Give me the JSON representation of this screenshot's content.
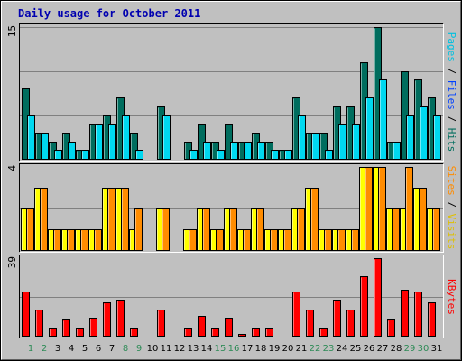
{
  "title": "Daily usage for October 2011",
  "colors": {
    "background": "#c0c0c0",
    "border": "#000000",
    "gridline": "#808080",
    "title": "#0000b0",
    "weekday": "#000000",
    "weekend": "#2e8b57",
    "pages": "#00d8f0",
    "files": "#0040ff",
    "hits": "#006d5e",
    "sites": "#ff8c00",
    "visits": "#ffff00",
    "kbytes": "#ff0000"
  },
  "legend": {
    "top": [
      {
        "text": "Pages",
        "color": "#00c0e0"
      },
      {
        "text": " / ",
        "color": "#000000"
      },
      {
        "text": "Files",
        "color": "#0040ff"
      },
      {
        "text": " / ",
        "color": "#000000"
      },
      {
        "text": "Hits",
        "color": "#006d5e"
      }
    ],
    "middle": [
      {
        "text": "Sites",
        "color": "#ff8c00"
      },
      {
        "text": " / ",
        "color": "#000000"
      },
      {
        "text": "Visits",
        "color": "#e0c000"
      }
    ],
    "bottom": [
      {
        "text": "KBytes",
        "color": "#ff0000"
      }
    ]
  },
  "chart_data": {
    "type": "bar",
    "title": "Daily usage for October 2011",
    "categories": [
      "1",
      "2",
      "3",
      "4",
      "5",
      "6",
      "7",
      "8",
      "9",
      "10",
      "11",
      "12",
      "13",
      "14",
      "15",
      "16",
      "17",
      "18",
      "19",
      "20",
      "21",
      "22",
      "23",
      "24",
      "25",
      "26",
      "27",
      "28",
      "29",
      "30",
      "31"
    ],
    "weekend_days": [
      "1",
      "2",
      "8",
      "9",
      "15",
      "16",
      "22",
      "23",
      "29",
      "30"
    ],
    "panels": [
      {
        "name": "Pages / Files / Hits",
        "max_label": "15",
        "ylim": [
          0,
          15
        ],
        "series": [
          {
            "name": "Hits",
            "values": [
              8,
              3,
              2,
              3,
              1,
              4,
              5,
              7,
              3,
              0,
              6,
              0,
              2,
              4,
              2,
              4,
              2,
              3,
              2,
              1,
              7,
              3,
              3,
              6,
              6,
              11,
              15,
              2,
              10,
              9,
              7
            ]
          },
          {
            "name": "Pages",
            "values": [
              5,
              3,
              1,
              2,
              1,
              4,
              4,
              5,
              1,
              0,
              5,
              0,
              1,
              2,
              1,
              2,
              2,
              2,
              1,
              1,
              5,
              3,
              1,
              4,
              4,
              7,
              9,
              2,
              5,
              6,
              5
            ]
          }
        ]
      },
      {
        "name": "Sites / Visits",
        "max_label": "4",
        "ylim": [
          0,
          4
        ],
        "series": [
          {
            "name": "Visits",
            "values": [
              2,
              3,
              1,
              1,
              1,
              1,
              3,
              3,
              1,
              0,
              2,
              0,
              1,
              2,
              1,
              2,
              1,
              2,
              1,
              1,
              2,
              3,
              1,
              1,
              1,
              4,
              4,
              2,
              2,
              3,
              2
            ]
          },
          {
            "name": "Sites",
            "values": [
              2,
              3,
              1,
              1,
              1,
              1,
              3,
              3,
              2,
              0,
              2,
              0,
              1,
              2,
              1,
              2,
              1,
              2,
              1,
              1,
              2,
              3,
              1,
              1,
              1,
              4,
              4,
              2,
              4,
              3,
              2
            ]
          }
        ]
      },
      {
        "name": "KBytes",
        "max_label": "39",
        "ylim": [
          0,
          39
        ],
        "series": [
          {
            "name": "KBytes",
            "values": [
              22,
              13,
              4,
              8,
              4,
              9,
              17,
              18,
              4,
              0,
              13,
              0,
              4,
              10,
              4,
              9,
              1,
              4,
              4,
              0,
              22,
              13,
              4,
              18,
              13,
              30,
              39,
              8,
              23,
              22,
              17
            ]
          }
        ]
      }
    ]
  }
}
